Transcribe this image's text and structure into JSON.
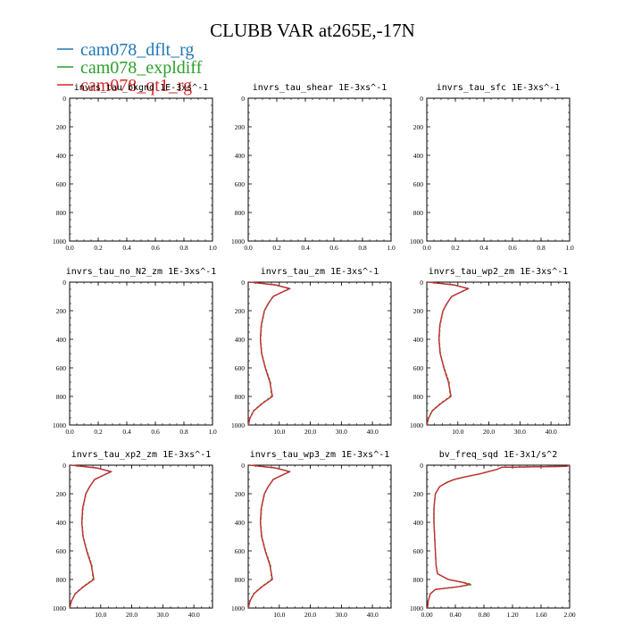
{
  "title": "CLUBB VAR at265E,-17N",
  "legend": [
    {
      "label": "cam078_dflt_rg",
      "color": "#1f77b4"
    },
    {
      "label": "cam078_expldiff",
      "color": "#2ca02c"
    },
    {
      "label": "cam078_qt1_rg",
      "color": "#d62728"
    }
  ],
  "chart_data": [
    {
      "type": "line",
      "title": "invrs_tau_bkgnd   1E-3xs^-1",
      "xlim": [
        0,
        1
      ],
      "ylim": [
        1000,
        0
      ],
      "xticks": [
        "0.0",
        "0.2",
        "0.4",
        "0.6",
        "0.8",
        "1.0"
      ],
      "yticks": [
        "0",
        "200",
        "400",
        "600",
        "800",
        "1000"
      ],
      "series": []
    },
    {
      "type": "line",
      "title": "invrs_tau_shear   1E-3xs^-1",
      "xlim": [
        0,
        1
      ],
      "ylim": [
        1000,
        0
      ],
      "xticks": [
        "0.0",
        "0.2",
        "0.4",
        "0.6",
        "0.8",
        "1.0"
      ],
      "yticks": [
        "0",
        "200",
        "400",
        "600",
        "800",
        "1000"
      ],
      "series": []
    },
    {
      "type": "line",
      "title": "invrs_tau_sfc   1E-3xs^-1",
      "xlim": [
        0,
        1
      ],
      "ylim": [
        1000,
        0
      ],
      "xticks": [
        "0.0",
        "0.2",
        "0.4",
        "0.6",
        "0.8",
        "1.0"
      ],
      "yticks": [
        "0",
        "200",
        "400",
        "600",
        "800",
        "1000"
      ],
      "series": []
    },
    {
      "type": "line",
      "title": "invrs_tau_no_N2_zm   1E-3xs^-1",
      "xlim": [
        0,
        1
      ],
      "ylim": [
        1000,
        0
      ],
      "xticks": [
        "0.0",
        "0.2",
        "0.4",
        "0.6",
        "0.8",
        "1.0"
      ],
      "yticks": [
        "0",
        "200",
        "400",
        "600",
        "800",
        "1000"
      ],
      "series": []
    },
    {
      "type": "line",
      "title": "invrs_tau_zm   1E-3xs^-1",
      "xlim": [
        0,
        46
      ],
      "ylim": [
        1000,
        0
      ],
      "xticks": [
        "10.0",
        "20.0",
        "30.0",
        "40.0"
      ],
      "yticks": [
        "0",
        "200",
        "400",
        "600",
        "800",
        "1000"
      ],
      "series": [
        {
          "y": [
            0,
            20,
            45,
            70,
            100,
            150,
            200,
            300,
            400,
            500,
            600,
            700,
            800,
            850,
            900,
            950,
            975,
            1000
          ],
          "x": [
            0.5,
            9,
            13.5,
            11,
            8,
            6.5,
            5.2,
            4.2,
            3.9,
            4.3,
            5.5,
            7,
            7.8,
            4.5,
            1.8,
            0.6,
            0.3,
            0.1
          ]
        },
        {
          "y": [
            0,
            20,
            45,
            70,
            100,
            150,
            200,
            300,
            400,
            500,
            600,
            700,
            800,
            850,
            900,
            950,
            975,
            1000
          ],
          "x": [
            0.5,
            9,
            13.2,
            10.8,
            8,
            6.5,
            5.3,
            4.3,
            4,
            4.4,
            5.6,
            7.2,
            7.5,
            4.3,
            1.7,
            0.6,
            0.3,
            0.1
          ]
        },
        {
          "y": [
            0,
            20,
            45,
            70,
            100,
            150,
            200,
            300,
            400,
            500,
            600,
            700,
            800,
            850,
            900,
            950,
            975,
            1000
          ],
          "x": [
            0.5,
            8.8,
            13.3,
            10.9,
            8.1,
            6.4,
            5.2,
            4.2,
            3.9,
            4.3,
            5.5,
            7,
            7.8,
            4.5,
            1.8,
            0.6,
            0.3,
            0.1
          ]
        }
      ]
    },
    {
      "type": "line",
      "title": "invrs_tau_wp2_zm   1E-3xs^-1",
      "xlim": [
        0,
        46
      ],
      "ylim": [
        1000,
        0
      ],
      "xticks": [
        "10.0",
        "20.0",
        "30.0",
        "40.0"
      ],
      "yticks": [
        "0",
        "200",
        "400",
        "600",
        "800",
        "1000"
      ],
      "series": [
        {
          "y": [
            0,
            20,
            45,
            70,
            100,
            150,
            200,
            300,
            400,
            500,
            600,
            700,
            800,
            850,
            900,
            950,
            975,
            1000
          ],
          "x": [
            0.5,
            9,
            13.5,
            11,
            8,
            6.5,
            5.2,
            4.2,
            3.9,
            4.3,
            5.5,
            7,
            7.8,
            4.5,
            1.8,
            0.6,
            0.3,
            0.1
          ]
        },
        {
          "y": [
            0,
            20,
            45,
            70,
            100,
            150,
            200,
            300,
            400,
            500,
            600,
            700,
            800,
            850,
            900,
            950,
            975,
            1000
          ],
          "x": [
            0.5,
            9,
            13.2,
            10.8,
            8,
            6.5,
            5.3,
            4.3,
            4,
            4.4,
            5.6,
            7.2,
            7.5,
            4.3,
            1.7,
            0.6,
            0.3,
            0.1
          ]
        },
        {
          "y": [
            0,
            20,
            45,
            70,
            100,
            150,
            200,
            300,
            400,
            500,
            600,
            700,
            800,
            850,
            900,
            950,
            975,
            1000
          ],
          "x": [
            0.5,
            8.8,
            13.3,
            10.9,
            8.1,
            6.4,
            5.2,
            4.2,
            3.9,
            4.3,
            5.5,
            7,
            7.8,
            4.5,
            1.8,
            0.6,
            0.3,
            0.1
          ]
        }
      ]
    },
    {
      "type": "line",
      "title": "invrs_tau_xp2_zm   1E-3xs^-1",
      "xlim": [
        0,
        46
      ],
      "ylim": [
        1000,
        0
      ],
      "xticks": [
        "10.0",
        "20.0",
        "30.0",
        "40.0"
      ],
      "yticks": [
        "0",
        "200",
        "400",
        "600",
        "800",
        "1000"
      ],
      "series": [
        {
          "y": [
            0,
            20,
            45,
            70,
            100,
            150,
            200,
            300,
            400,
            500,
            600,
            700,
            800,
            850,
            900,
            950,
            975,
            1000
          ],
          "x": [
            0.5,
            9,
            13.5,
            11,
            8,
            6.5,
            5.2,
            4.2,
            3.9,
            4.3,
            5.5,
            7,
            7.8,
            4.5,
            1.8,
            0.6,
            0.3,
            0.1
          ]
        },
        {
          "y": [
            0,
            20,
            45,
            70,
            100,
            150,
            200,
            300,
            400,
            500,
            600,
            700,
            800,
            850,
            900,
            950,
            975,
            1000
          ],
          "x": [
            0.5,
            9,
            13.2,
            10.8,
            8,
            6.5,
            5.3,
            4.3,
            4,
            4.4,
            5.6,
            7.2,
            7.5,
            4.3,
            1.7,
            0.6,
            0.3,
            0.1
          ]
        },
        {
          "y": [
            0,
            20,
            45,
            70,
            100,
            150,
            200,
            300,
            400,
            500,
            600,
            700,
            800,
            850,
            900,
            950,
            975,
            1000
          ],
          "x": [
            0.5,
            8.8,
            13.3,
            10.9,
            8.1,
            6.4,
            5.2,
            4.2,
            3.9,
            4.3,
            5.5,
            7,
            7.8,
            4.5,
            1.8,
            0.6,
            0.3,
            0.1
          ]
        }
      ]
    },
    {
      "type": "line",
      "title": "invrs_tau_wp3_zm   1E-3xs^-1",
      "xlim": [
        0,
        46
      ],
      "ylim": [
        1000,
        0
      ],
      "xticks": [
        "10.0",
        "20.0",
        "30.0",
        "40.0"
      ],
      "yticks": [
        "0",
        "200",
        "400",
        "600",
        "800",
        "1000"
      ],
      "series": [
        {
          "y": [
            0,
            20,
            45,
            70,
            100,
            150,
            200,
            300,
            400,
            500,
            600,
            700,
            800,
            850,
            900,
            950,
            975,
            1000
          ],
          "x": [
            0.5,
            9,
            13.5,
            11,
            8,
            6.5,
            5.2,
            4.2,
            3.9,
            4.3,
            5.5,
            7,
            7.8,
            4.5,
            1.8,
            0.6,
            0.3,
            0.1
          ]
        },
        {
          "y": [
            0,
            20,
            45,
            70,
            100,
            150,
            200,
            300,
            400,
            500,
            600,
            700,
            800,
            850,
            900,
            950,
            975,
            1000
          ],
          "x": [
            0.5,
            9,
            13.2,
            10.8,
            8,
            6.5,
            5.3,
            4.3,
            4,
            4.4,
            5.6,
            7.2,
            7.5,
            4.3,
            1.7,
            0.6,
            0.3,
            0.1
          ]
        },
        {
          "y": [
            0,
            20,
            45,
            70,
            100,
            150,
            200,
            300,
            400,
            500,
            600,
            700,
            800,
            850,
            900,
            950,
            975,
            1000
          ],
          "x": [
            0.5,
            8.8,
            13.3,
            10.9,
            8.1,
            6.4,
            5.2,
            4.2,
            3.9,
            4.3,
            5.5,
            7,
            7.8,
            4.5,
            1.8,
            0.6,
            0.3,
            0.1
          ]
        }
      ]
    },
    {
      "type": "line",
      "title": "bv_freq_sqd   1E-3x1/s^2",
      "xlim": [
        0,
        2
      ],
      "ylim": [
        1000,
        0
      ],
      "xticks": [
        "0.00",
        "0.40",
        "0.80",
        "1.20",
        "1.60",
        "2.00"
      ],
      "yticks": [
        "0",
        "200",
        "400",
        "600",
        "800",
        "1000"
      ],
      "series": [
        {
          "y": [
            0,
            2,
            5,
            8,
            15,
            30,
            60,
            80,
            100,
            120,
            150,
            200,
            300,
            400,
            500,
            600,
            700,
            760,
            800,
            820,
            835,
            850,
            870,
            900,
            950,
            1000
          ],
          "x": [
            2.0,
            2.0,
            1.98,
            1.95,
            1.05,
            0.98,
            0.75,
            0.55,
            0.38,
            0.28,
            0.18,
            0.12,
            0.1,
            0.1,
            0.11,
            0.12,
            0.13,
            0.15,
            0.3,
            0.5,
            0.6,
            0.45,
            0.12,
            0.05,
            0.02,
            0.01
          ]
        },
        {
          "y": [
            0,
            2,
            5,
            8,
            15,
            30,
            60,
            80,
            100,
            120,
            150,
            200,
            300,
            400,
            500,
            600,
            700,
            760,
            800,
            820,
            835,
            850,
            870,
            900,
            950,
            1000
          ],
          "x": [
            2.0,
            2.0,
            1.98,
            1.95,
            1.05,
            0.98,
            0.74,
            0.55,
            0.38,
            0.28,
            0.18,
            0.12,
            0.1,
            0.1,
            0.11,
            0.12,
            0.13,
            0.15,
            0.3,
            0.52,
            0.63,
            0.47,
            0.12,
            0.05,
            0.02,
            0.01
          ]
        },
        {
          "y": [
            0,
            2,
            5,
            8,
            15,
            30,
            60,
            80,
            100,
            120,
            150,
            200,
            300,
            400,
            500,
            600,
            700,
            760,
            800,
            820,
            835,
            850,
            870,
            900,
            950,
            1000
          ],
          "x": [
            2.0,
            2.0,
            1.98,
            1.95,
            1.05,
            0.98,
            0.75,
            0.56,
            0.39,
            0.29,
            0.18,
            0.12,
            0.1,
            0.1,
            0.11,
            0.12,
            0.13,
            0.15,
            0.3,
            0.5,
            0.6,
            0.45,
            0.12,
            0.05,
            0.02,
            0.01
          ]
        }
      ]
    }
  ]
}
